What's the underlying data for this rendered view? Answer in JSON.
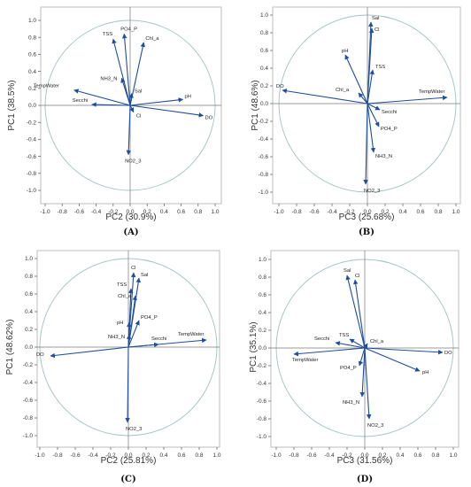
{
  "chart_data": [
    {
      "type": "scatter",
      "title": "",
      "panel_label": "(A)",
      "xlabel": "PC2 (30.9%)",
      "ylabel": "PC1 (38.5%)",
      "xlim": [
        -1.0,
        1.0
      ],
      "ylim": [
        -1.0,
        1.0
      ],
      "grid": false,
      "ticks": [
        "-1.0",
        "-0.8",
        "-0.6",
        "-0.4",
        "-0.2",
        "0.0",
        "0.2",
        "0.4",
        "0.6",
        "0.8",
        "1.0"
      ],
      "loadings": [
        {
          "name": "PO4_P",
          "x": -0.07,
          "y": 0.84
        },
        {
          "name": "Chl_a",
          "x": 0.16,
          "y": 0.74
        },
        {
          "name": "TSS",
          "x": -0.2,
          "y": 0.78
        },
        {
          "name": "NH3_N",
          "x": -0.1,
          "y": 0.32
        },
        {
          "name": "Sal",
          "x": 0.02,
          "y": 0.14
        },
        {
          "name": "TempWater",
          "x": -0.66,
          "y": 0.18
        },
        {
          "name": "Secchi",
          "x": -0.45,
          "y": 0.01
        },
        {
          "name": "Cl",
          "x": 0.04,
          "y": -0.08
        },
        {
          "name": "pH",
          "x": 0.62,
          "y": 0.07
        },
        {
          "name": "DO",
          "x": 0.86,
          "y": -0.12
        },
        {
          "name": "NO2_3",
          "x": -0.02,
          "y": -0.58
        }
      ]
    },
    {
      "type": "scatter",
      "title": "",
      "panel_label": "(B)",
      "xlabel": "PC3 (25.68%)",
      "ylabel": "PC1 (48.6%)",
      "xlim": [
        -1.0,
        1.0
      ],
      "ylim": [
        -1.0,
        1.0
      ],
      "grid": false,
      "ticks": [
        "-1.0",
        "-0.8",
        "-0.6",
        "-0.4",
        "-0.2",
        "0.0",
        "0.2",
        "0.4",
        "0.6",
        "0.8",
        "1.0"
      ],
      "loadings": [
        {
          "name": "Sal",
          "x": 0.04,
          "y": 0.92
        },
        {
          "name": "Cl",
          "x": 0.05,
          "y": 0.85
        },
        {
          "name": "pH",
          "x": -0.25,
          "y": 0.55
        },
        {
          "name": "TSS",
          "x": 0.06,
          "y": 0.38
        },
        {
          "name": "Chl_a",
          "x": -0.1,
          "y": 0.12
        },
        {
          "name": "DO",
          "x": -0.96,
          "y": 0.15
        },
        {
          "name": "TempWater",
          "x": 0.9,
          "y": 0.07
        },
        {
          "name": "Secchi",
          "x": 0.14,
          "y": -0.07
        },
        {
          "name": "PO4_P",
          "x": 0.13,
          "y": -0.26
        },
        {
          "name": "NH3_N",
          "x": 0.07,
          "y": -0.55
        },
        {
          "name": "NO2_3",
          "x": -0.02,
          "y": -0.91
        }
      ]
    },
    {
      "type": "scatter",
      "title": "",
      "panel_label": "(C)",
      "xlabel": "PC2 (25.81%)",
      "ylabel": "PC1 (48.62%)",
      "xlim": [
        -1.0,
        1.0
      ],
      "ylim": [
        -1.0,
        1.0
      ],
      "grid": false,
      "ticks": [
        "-1.0",
        "-0.8",
        "-0.6",
        "-0.4",
        "-0.2",
        "0.0",
        "0.2",
        "0.4",
        "0.6",
        "0.8",
        "1.0"
      ],
      "loadings": [
        {
          "name": "Cl",
          "x": 0.06,
          "y": 0.84
        },
        {
          "name": "Sal",
          "x": 0.12,
          "y": 0.78
        },
        {
          "name": "TSS",
          "x": 0.03,
          "y": 0.66
        },
        {
          "name": "Chl_a",
          "x": 0.08,
          "y": 0.58
        },
        {
          "name": "PO4_P",
          "x": 0.12,
          "y": 0.3
        },
        {
          "name": "pH",
          "x": 0.01,
          "y": 0.28
        },
        {
          "name": "NH3_N",
          "x": 0.01,
          "y": 0.14
        },
        {
          "name": "TempWater",
          "x": 0.88,
          "y": 0.08
        },
        {
          "name": "Secchi",
          "x": 0.34,
          "y": 0.03
        },
        {
          "name": "DO",
          "x": -0.88,
          "y": -0.1
        },
        {
          "name": "NO2_3",
          "x": -0.01,
          "y": -0.85
        }
      ]
    },
    {
      "type": "scatter",
      "title": "",
      "panel_label": "(D)",
      "xlabel": "PC3 (31.56%)",
      "ylabel": "PC1 (35.1%)",
      "xlim": [
        -1.0,
        1.0
      ],
      "ylim": [
        -1.0,
        1.0
      ],
      "grid": false,
      "ticks": [
        "-1.0",
        "-0.8",
        "-0.6",
        "-0.4",
        "-0.2",
        "0.0",
        "0.2",
        "0.4",
        "0.6",
        "0.8",
        "1.0"
      ],
      "loadings": [
        {
          "name": "Sal",
          "x": -0.2,
          "y": 0.82
        },
        {
          "name": "Cl",
          "x": -0.11,
          "y": 0.77
        },
        {
          "name": "TSS",
          "x": -0.17,
          "y": 0.1
        },
        {
          "name": "Secchi",
          "x": -0.33,
          "y": 0.06
        },
        {
          "name": "Chl_a",
          "x": 0.03,
          "y": 0.05
        },
        {
          "name": "TempWater",
          "x": -0.8,
          "y": -0.07
        },
        {
          "name": "DO",
          "x": 0.88,
          "y": -0.05
        },
        {
          "name": "pH",
          "x": 0.62,
          "y": -0.26
        },
        {
          "name": "PO4_P",
          "x": -0.06,
          "y": -0.2
        },
        {
          "name": "NH3_N",
          "x": -0.03,
          "y": -0.55
        },
        {
          "name": "NO2_3",
          "x": 0.05,
          "y": -0.8
        }
      ]
    }
  ]
}
